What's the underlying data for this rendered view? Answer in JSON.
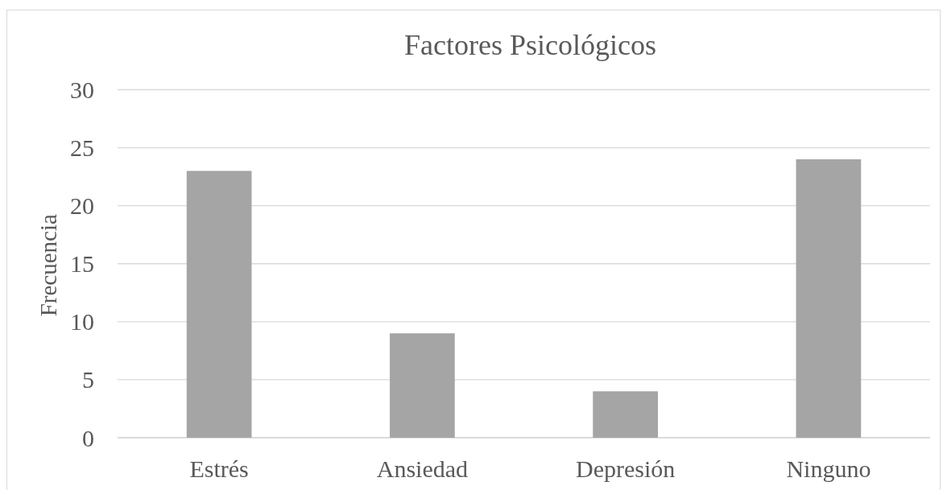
{
  "chart_data": {
    "type": "bar",
    "title": "Factores Psicológicos",
    "ylabel": "Frecuencia",
    "categories": [
      "Estrés",
      "Ansiedad",
      "Depresión",
      "Ninguno"
    ],
    "values": [
      23,
      9,
      4,
      24
    ],
    "color": "#a5a5a5",
    "ylim": [
      0,
      30
    ],
    "yticks": [
      0,
      5,
      10,
      15,
      20,
      25,
      30
    ],
    "grid": true
  }
}
